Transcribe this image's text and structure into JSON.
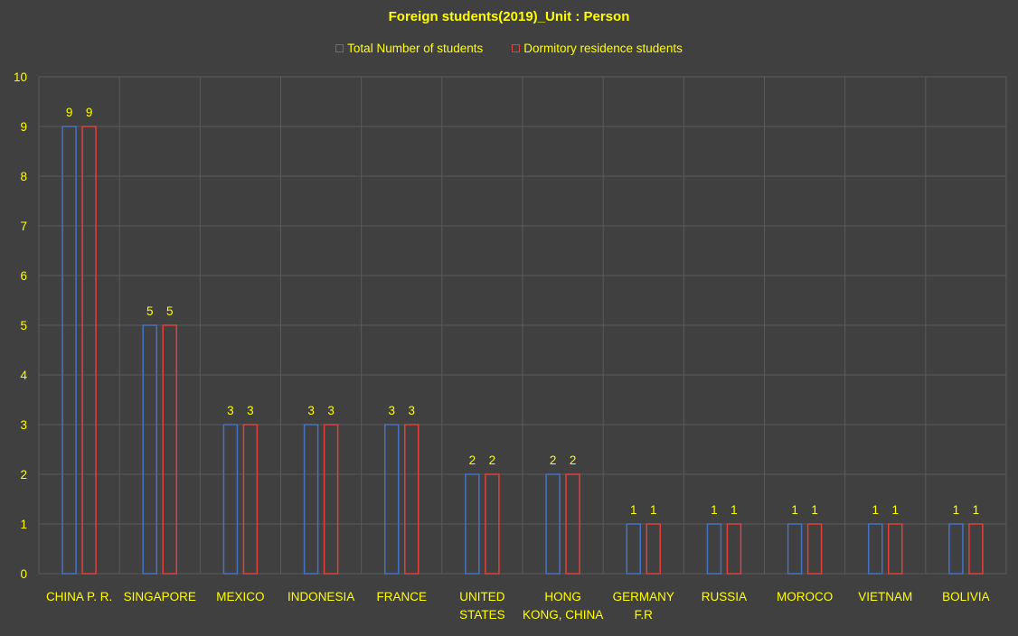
{
  "chart_data": {
    "type": "bar",
    "title": "Foreign students(2019)_Unit : Person",
    "xlabel": "",
    "ylabel": "",
    "categories": [
      [
        "CHINA P. R."
      ],
      [
        "SINGAPORE"
      ],
      [
        "MEXICO"
      ],
      [
        "INDONESIA"
      ],
      [
        "FRANCE"
      ],
      [
        "UNITED",
        "STATES"
      ],
      [
        "HONG",
        "KONG, CHINA"
      ],
      [
        "GERMANY",
        "F.R"
      ],
      [
        "RUSSIA"
      ],
      [
        "MOROCO"
      ],
      [
        "VIETNAM"
      ],
      [
        "BOLIVIA"
      ]
    ],
    "series": [
      {
        "name": "Total Number of students",
        "color": "#4472c4",
        "values": [
          9,
          5,
          3,
          3,
          3,
          2,
          2,
          1,
          1,
          1,
          1,
          1
        ]
      },
      {
        "name": "Dormitory residence students",
        "color": "#e0403a",
        "values": [
          9,
          5,
          3,
          3,
          3,
          2,
          2,
          1,
          1,
          1,
          1,
          1
        ]
      }
    ],
    "ylim": [
      0,
      10
    ],
    "yticks": [
      "0",
      "1",
      "2",
      "3",
      "4",
      "5",
      "6",
      "7",
      "8",
      "9",
      "10"
    ],
    "grid": true,
    "legend": "top-center",
    "data_labels": true
  }
}
